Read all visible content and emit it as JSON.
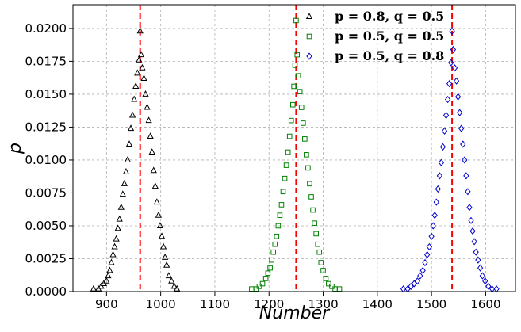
{
  "chart_data": {
    "type": "scatter",
    "xlabel": "Number",
    "ylabel": "p",
    "xlim": [
      838,
      1655
    ],
    "ylim": [
      0,
      0.0218
    ],
    "xticks": [
      900,
      1000,
      1100,
      1200,
      1300,
      1400,
      1500,
      1600
    ],
    "xtick_labels": [
      "900",
      "1000",
      "1100",
      "1200",
      "1300",
      "1400",
      "1500",
      "1600"
    ],
    "yticks": [
      0,
      0.0025,
      0.005,
      0.0075,
      0.01,
      0.0125,
      0.015,
      0.0175,
      0.02
    ],
    "ytick_labels": [
      "0.0000",
      "0.0025",
      "0.0050",
      "0.0075",
      "0.0100",
      "0.0125",
      "0.0150",
      "0.0175",
      "0.0200"
    ],
    "grid": true,
    "legend_position": "top-right",
    "series": [
      {
        "name": "p = 0.8, q = 0.5",
        "marker": "triangle",
        "color": "#000000",
        "mean": 962,
        "points": [
          [
            876,
            0.0002
          ],
          [
            885,
            0.0002
          ],
          [
            890,
            0.0004
          ],
          [
            895,
            0.0006
          ],
          [
            900,
            0.0008
          ],
          [
            903,
            0.0012
          ],
          [
            906,
            0.0016
          ],
          [
            909,
            0.0022
          ],
          [
            912,
            0.0028
          ],
          [
            915,
            0.0034
          ],
          [
            918,
            0.004
          ],
          [
            921,
            0.0048
          ],
          [
            924,
            0.0055
          ],
          [
            927,
            0.0064
          ],
          [
            930,
            0.0074
          ],
          [
            933,
            0.0082
          ],
          [
            936,
            0.0091
          ],
          [
            939,
            0.01
          ],
          [
            942,
            0.0112
          ],
          [
            945,
            0.0124
          ],
          [
            948,
            0.0134
          ],
          [
            951,
            0.0146
          ],
          [
            954,
            0.0156
          ],
          [
            957,
            0.0166
          ],
          [
            960,
            0.0176
          ],
          [
            962,
            0.0198
          ],
          [
            964,
            0.018
          ],
          [
            966,
            0.017
          ],
          [
            969,
            0.0162
          ],
          [
            972,
            0.015
          ],
          [
            975,
            0.014
          ],
          [
            978,
            0.013
          ],
          [
            981,
            0.0118
          ],
          [
            984,
            0.0106
          ],
          [
            987,
            0.0092
          ],
          [
            990,
            0.008
          ],
          [
            993,
            0.0068
          ],
          [
            996,
            0.0058
          ],
          [
            999,
            0.005
          ],
          [
            1002,
            0.0042
          ],
          [
            1005,
            0.0034
          ],
          [
            1008,
            0.0026
          ],
          [
            1011,
            0.002
          ],
          [
            1015,
            0.0012
          ],
          [
            1020,
            0.0008
          ],
          [
            1025,
            0.0004
          ],
          [
            1030,
            0.0002
          ]
        ]
      },
      {
        "name": "p = 0.5, q = 0.5",
        "marker": "square",
        "color": "#008000",
        "mean": 1250,
        "points": [
          [
            1168,
            0.0002
          ],
          [
            1176,
            0.0002
          ],
          [
            1182,
            0.0004
          ],
          [
            1188,
            0.0006
          ],
          [
            1194,
            0.001
          ],
          [
            1198,
            0.0014
          ],
          [
            1202,
            0.0018
          ],
          [
            1205,
            0.0024
          ],
          [
            1208,
            0.003
          ],
          [
            1211,
            0.0036
          ],
          [
            1214,
            0.0042
          ],
          [
            1217,
            0.005
          ],
          [
            1220,
            0.0058
          ],
          [
            1223,
            0.0066
          ],
          [
            1226,
            0.0076
          ],
          [
            1229,
            0.0086
          ],
          [
            1232,
            0.0096
          ],
          [
            1235,
            0.0106
          ],
          [
            1238,
            0.0118
          ],
          [
            1241,
            0.013
          ],
          [
            1244,
            0.0142
          ],
          [
            1246,
            0.0156
          ],
          [
            1248,
            0.0172
          ],
          [
            1250,
            0.0206
          ],
          [
            1252,
            0.018
          ],
          [
            1254,
            0.0164
          ],
          [
            1257,
            0.0152
          ],
          [
            1260,
            0.014
          ],
          [
            1263,
            0.0128
          ],
          [
            1266,
            0.0116
          ],
          [
            1269,
            0.0104
          ],
          [
            1272,
            0.0094
          ],
          [
            1275,
            0.0082
          ],
          [
            1278,
            0.0072
          ],
          [
            1281,
            0.0062
          ],
          [
            1284,
            0.0052
          ],
          [
            1287,
            0.0044
          ],
          [
            1290,
            0.0036
          ],
          [
            1293,
            0.003
          ],
          [
            1296,
            0.0022
          ],
          [
            1300,
            0.0016
          ],
          [
            1305,
            0.001
          ],
          [
            1310,
            0.0006
          ],
          [
            1316,
            0.0004
          ],
          [
            1322,
            0.0002
          ],
          [
            1330,
            0.0002
          ]
        ]
      },
      {
        "name": "p = 0.5, q = 0.8",
        "marker": "diamond",
        "color": "#0000cc",
        "mean": 1538,
        "points": [
          [
            1448,
            0.0002
          ],
          [
            1456,
            0.0002
          ],
          [
            1462,
            0.0004
          ],
          [
            1468,
            0.0006
          ],
          [
            1474,
            0.0008
          ],
          [
            1479,
            0.0012
          ],
          [
            1484,
            0.0016
          ],
          [
            1488,
            0.0022
          ],
          [
            1492,
            0.0028
          ],
          [
            1496,
            0.0034
          ],
          [
            1500,
            0.0042
          ],
          [
            1503,
            0.005
          ],
          [
            1506,
            0.0058
          ],
          [
            1509,
            0.0068
          ],
          [
            1512,
            0.0078
          ],
          [
            1515,
            0.0088
          ],
          [
            1518,
            0.0098
          ],
          [
            1521,
            0.011
          ],
          [
            1524,
            0.0122
          ],
          [
            1527,
            0.0134
          ],
          [
            1530,
            0.0146
          ],
          [
            1533,
            0.0158
          ],
          [
            1536,
            0.0174
          ],
          [
            1538,
            0.0198
          ],
          [
            1540,
            0.0184
          ],
          [
            1543,
            0.017
          ],
          [
            1546,
            0.016
          ],
          [
            1549,
            0.0148
          ],
          [
            1552,
            0.0136
          ],
          [
            1555,
            0.0124
          ],
          [
            1558,
            0.0112
          ],
          [
            1561,
            0.01
          ],
          [
            1564,
            0.0088
          ],
          [
            1567,
            0.0076
          ],
          [
            1570,
            0.0064
          ],
          [
            1573,
            0.0054
          ],
          [
            1576,
            0.0046
          ],
          [
            1579,
            0.0038
          ],
          [
            1582,
            0.003
          ],
          [
            1586,
            0.0024
          ],
          [
            1590,
            0.0018
          ],
          [
            1594,
            0.0012
          ],
          [
            1599,
            0.0008
          ],
          [
            1605,
            0.0004
          ],
          [
            1612,
            0.0002
          ],
          [
            1620,
            0.0002
          ]
        ]
      }
    ]
  }
}
